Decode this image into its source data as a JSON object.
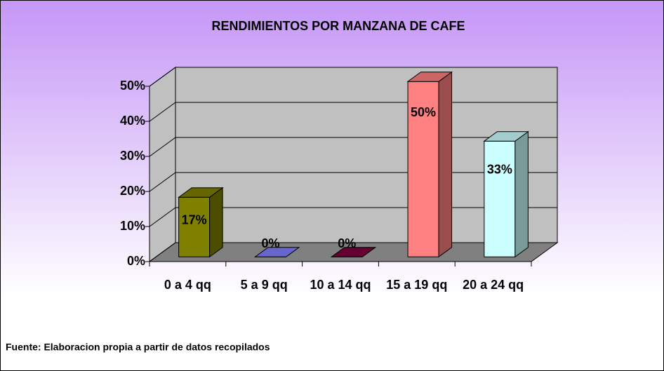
{
  "chart_data": {
    "type": "bar3d",
    "title": "RENDIMIENTOS POR MANZANA DE CAFE",
    "categories": [
      "0 a 4 qq",
      "5 a 9 qq",
      "10 a 14 qq",
      "15 a 19 qq",
      "20 a 24 qq"
    ],
    "values": [
      17,
      0,
      0,
      50,
      33
    ],
    "value_labels": [
      "17%",
      "0%",
      "0%",
      "50%",
      "33%"
    ],
    "colors": [
      "#808000",
      "#8080ff",
      "#800040",
      "#ff8080",
      "#ccffff"
    ],
    "ylim": [
      0,
      50
    ],
    "yticks": [
      {
        "value": 0,
        "label": "0%"
      },
      {
        "value": 10,
        "label": "10%"
      },
      {
        "value": 20,
        "label": "20%"
      },
      {
        "value": 30,
        "label": "30%"
      },
      {
        "value": 40,
        "label": "40%"
      },
      {
        "value": 50,
        "label": "50%"
      }
    ],
    "grid": true,
    "note": "Fuente: Elaboracion propia a partir de datos recopilados"
  }
}
